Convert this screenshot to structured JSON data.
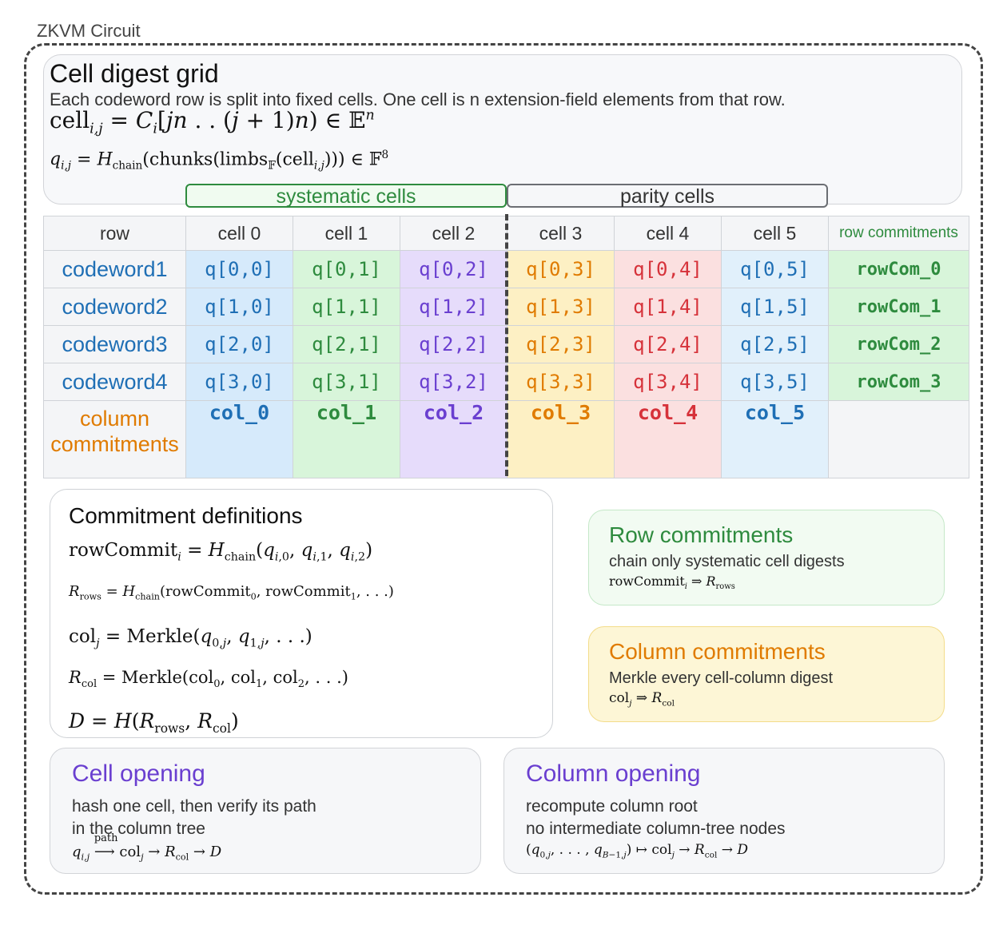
{
  "frame": {
    "label": "ZKVM Circuit"
  },
  "header": {
    "title": "Cell digest grid",
    "description": "Each codeword row is split into fixed cells. One cell is n extension-field elements from that row.",
    "formula_cell": "cell_{i,j} = C_i[jn .. (j+1)n) ∈ E^n",
    "formula_q": "q_{i,j} = H_chain(chunks(limbs_F(cell_{i,j}))) ∈ F^8"
  },
  "groups": {
    "systematic": "systematic cells",
    "parity": "parity cells"
  },
  "grid": {
    "headers": [
      "row",
      "cell 0",
      "cell 1",
      "cell 2",
      "cell 3",
      "cell 4",
      "cell 5",
      "row commitments"
    ],
    "rows": [
      {
        "label": "codeword1",
        "cells": [
          "q[0,0]",
          "q[0,1]",
          "q[0,2]",
          "q[0,3]",
          "q[0,4]",
          "q[0,5]"
        ],
        "commit": "rowCom_0"
      },
      {
        "label": "codeword2",
        "cells": [
          "q[1,0]",
          "q[1,1]",
          "q[1,2]",
          "q[1,3]",
          "q[1,4]",
          "q[1,5]"
        ],
        "commit": "rowCom_1"
      },
      {
        "label": "codeword3",
        "cells": [
          "q[2,0]",
          "q[2,1]",
          "q[2,2]",
          "q[2,3]",
          "q[2,4]",
          "q[2,5]"
        ],
        "commit": "rowCom_2"
      },
      {
        "label": "codeword4",
        "cells": [
          "q[3,0]",
          "q[3,1]",
          "q[3,2]",
          "q[3,3]",
          "q[3,4]",
          "q[3,5]"
        ],
        "commit": "rowCom_3"
      }
    ],
    "column_row": {
      "label": "column commitments",
      "cells": [
        "col_0",
        "col_1",
        "col_2",
        "col_3",
        "col_4",
        "col_5"
      ]
    }
  },
  "definitions": {
    "title": "Commitment definitions",
    "lines": [
      "rowCommit_i = H_chain(q_{i,0}, q_{i,1}, q_{i,2})",
      "R_rows = H_chain(rowCommit_0, rowCommit_1, ...)",
      "col_j = Merkle(q_{0,j}, q_{1,j}, ...)",
      "R_col = Merkle(col_0, col_1, col_2, ...)",
      "D = H(R_rows, R_col)"
    ]
  },
  "row_commitments": {
    "title": "Row commitments",
    "subtitle": "chain only systematic cell digests",
    "formula": "rowCommit_i ⇒ R_rows"
  },
  "column_commitments": {
    "title": "Column commitments",
    "subtitle": "Merkle every cell-column digest",
    "formula": "col_j ⇒ R_col"
  },
  "cell_opening": {
    "title": "Cell opening",
    "line1": "hash one cell, then verify its path",
    "line2": "in the column tree",
    "formula": "q_{i,j} —path→ col_j → R_col → D",
    "arrow_label": "path"
  },
  "column_opening": {
    "title": "Column opening",
    "line1": "recompute column root",
    "line2": "no intermediate column-tree nodes",
    "formula": "(q_{0,j}, ..., q_{B-1,j}) ↦ col_j → R_col → D"
  },
  "colors": {
    "cell0": "#1f6fb5",
    "cell1": "#2e8b3e",
    "cell2": "#6a3fd0",
    "cell3": "#e07b00",
    "cell4": "#d6323a",
    "cell5": "#1f6fb5",
    "row_commit": "#2e8b3e",
    "column_commit": "#e07b00",
    "opening": "#6a3fd0"
  }
}
